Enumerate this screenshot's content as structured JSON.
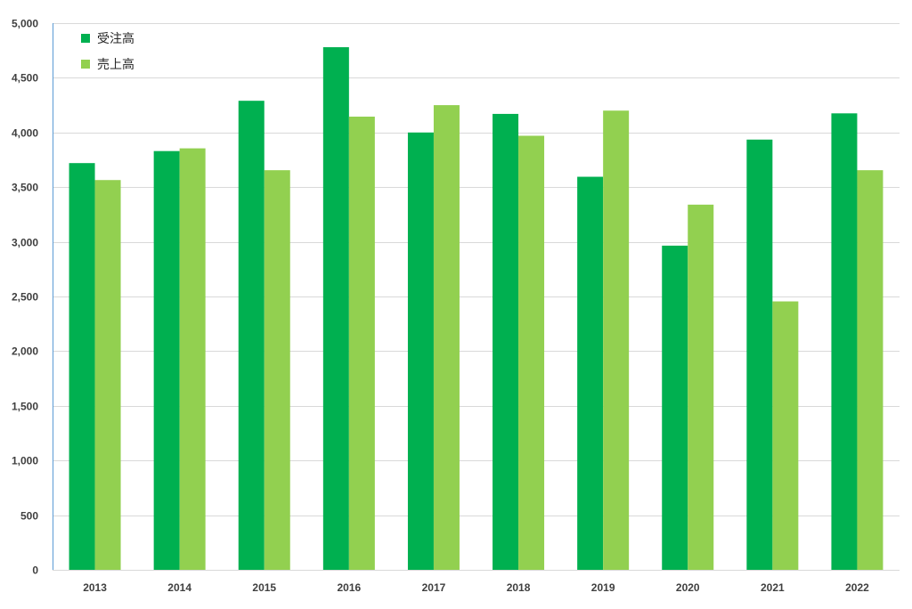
{
  "chart_data": {
    "type": "bar",
    "title": "",
    "xlabel": "",
    "ylabel": "",
    "categories": [
      "2013",
      "2014",
      "2015",
      "2016",
      "2017",
      "2018",
      "2019",
      "2020",
      "2021",
      "2022"
    ],
    "series": [
      {
        "name": "受注高",
        "color": "#00b050",
        "values": [
          3720,
          3830,
          4290,
          4780,
          4000,
          4170,
          3595,
          2965,
          3935,
          4175
        ]
      },
      {
        "name": "売上高",
        "color": "#92d050",
        "values": [
          3565,
          3855,
          3655,
          4145,
          4250,
          3970,
          4200,
          3340,
          2455,
          3655
        ]
      }
    ],
    "ylim": [
      0,
      5000
    ],
    "yticks": [
      0,
      500,
      1000,
      1500,
      2000,
      2500,
      3000,
      3500,
      4000,
      4500,
      5000
    ],
    "ytick_labels": [
      "0",
      "500",
      "1,000",
      "1,500",
      "2,000",
      "2,500",
      "3,000",
      "3,500",
      "4,000",
      "4,500",
      "5,000"
    ],
    "grid": true,
    "legend_position": "top-left"
  }
}
